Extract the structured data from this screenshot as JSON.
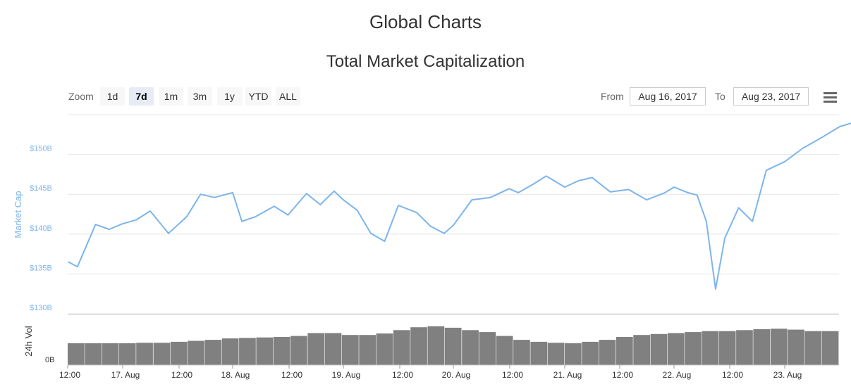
{
  "page_title": "Global Charts",
  "toolbar": {
    "zoom_label": "Zoom",
    "zoom_buttons": [
      "1d",
      "7d",
      "1m",
      "3m",
      "1y",
      "YTD",
      "ALL"
    ],
    "selected_zoom": "7d",
    "from_label": "From",
    "from_value": "Aug 16, 2017",
    "to_label": "To",
    "to_value": "Aug 23, 2017"
  },
  "icons": {
    "menu": "hamburger-menu-icon"
  },
  "colors": {
    "line": "#7cb5ec",
    "volume": "#808080",
    "grid": "#e6e6e6"
  },
  "chart_data": [
    {
      "type": "line",
      "title": "Total Market Capitalization",
      "ylabel": "Market Cap",
      "ylim": [
        130,
        155
      ],
      "y_unit": "B",
      "y_ticks": [
        "$130B",
        "$135B",
        "$140B",
        "$145B",
        "$150B"
      ],
      "x_ticks": [
        "12:00",
        "17. Aug",
        "12:00",
        "18. Aug",
        "12:00",
        "19. Aug",
        "12:00",
        "20. Aug",
        "12:00",
        "21. Aug",
        "12:00",
        "22. Aug",
        "12:00",
        "23. Aug"
      ],
      "grid": true,
      "series": [
        {
          "x": [
            "Aug 16 12:00",
            "Aug 16 14:00",
            "Aug 16 18:00",
            "Aug 16 21:00",
            "Aug 17 00:00",
            "Aug 17 03:00",
            "Aug 17 06:00",
            "Aug 17 10:00",
            "Aug 17 14:00",
            "Aug 17 17:00",
            "Aug 17 20:00",
            "Aug 18 00:00",
            "Aug 18 02:00",
            "Aug 18 05:00",
            "Aug 18 09:00",
            "Aug 18 12:00",
            "Aug 18 16:00",
            "Aug 18 19:00",
            "Aug 18 22:00",
            "Aug 19 00:00",
            "Aug 19 03:00",
            "Aug 19 06:00",
            "Aug 19 09:00",
            "Aug 19 12:00",
            "Aug 19 16:00",
            "Aug 19 19:00",
            "Aug 19 22:00",
            "Aug 20 00:00",
            "Aug 20 04:00",
            "Aug 20 08:00",
            "Aug 20 12:00",
            "Aug 20 14:00",
            "Aug 20 17:00",
            "Aug 20 20:00",
            "Aug 21 00:00",
            "Aug 21 03:00",
            "Aug 21 06:00",
            "Aug 21 10:00",
            "Aug 21 14:00",
            "Aug 21 18:00",
            "Aug 21 22:00",
            "Aug 22 00:00",
            "Aug 22 03:00",
            "Aug 22 05:00",
            "Aug 22 07:00",
            "Aug 22 09:00",
            "Aug 22 11:00",
            "Aug 22 14:00",
            "Aug 22 17:00",
            "Aug 22 20:00",
            "Aug 23 00:00",
            "Aug 23 04:00",
            "Aug 23 08:00",
            "Aug 23 12:00",
            "Aug 23 16:00",
            "Aug 23 20:00",
            "Aug 23 23:00"
          ],
          "values": [
            136.5,
            135.9,
            141.2,
            140.6,
            141.3,
            141.8,
            142.9,
            140.1,
            142.2,
            145.0,
            144.6,
            145.2,
            141.6,
            142.2,
            143.5,
            142.4,
            145.1,
            143.7,
            145.4,
            144.3,
            143.0,
            140.1,
            139.1,
            143.6,
            142.7,
            141.0,
            140.1,
            141.1,
            144.3,
            144.6,
            145.7,
            145.2,
            146.2,
            147.3,
            145.9,
            146.7,
            147.1,
            145.3,
            145.6,
            144.3,
            145.2,
            145.9,
            145.2,
            144.9,
            141.6,
            133.1,
            139.5,
            143.3,
            141.6,
            148.0,
            149.1,
            150.8,
            152.1,
            153.5,
            154.2,
            154.0,
            154.1
          ]
        }
      ]
    },
    {
      "type": "bar",
      "ylabel": "24h Vol",
      "y_ticks": [
        "0B"
      ],
      "series": [
        {
          "values": [
            0.45,
            0.45,
            0.45,
            0.45,
            0.46,
            0.46,
            0.48,
            0.5,
            0.52,
            0.55,
            0.56,
            0.57,
            0.58,
            0.6,
            0.66,
            0.66,
            0.62,
            0.62,
            0.65,
            0.72,
            0.78,
            0.8,
            0.77,
            0.72,
            0.68,
            0.6,
            0.52,
            0.48,
            0.46,
            0.45,
            0.48,
            0.52,
            0.58,
            0.62,
            0.64,
            0.66,
            0.68,
            0.7,
            0.7,
            0.72,
            0.74,
            0.75,
            0.73,
            0.7,
            0.7
          ]
        }
      ]
    }
  ]
}
